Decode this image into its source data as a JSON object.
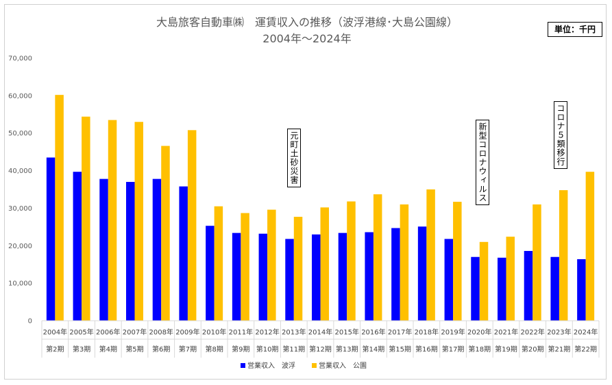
{
  "chart_data": {
    "type": "bar",
    "title": "大島旅客自動車㈱　運賃収入の推移（波浮港線･大島公園線）",
    "subtitle": "2004年～2024年",
    "unit_label": "単位：千円",
    "ylim": [
      0,
      70000
    ],
    "yticks": [
      "0",
      "10,000",
      "20,000",
      "30,000",
      "40,000",
      "50,000",
      "60,000",
      "70,000"
    ],
    "categories": [
      "2004年",
      "2005年",
      "2006年",
      "2007年",
      "2008年",
      "2009年",
      "2010年",
      "2011年",
      "2012年",
      "2013年",
      "2014年",
      "2015年",
      "2016年",
      "2017年",
      "2018年",
      "2019年",
      "2020年",
      "2021年",
      "2022年",
      "2023年",
      "2024年"
    ],
    "periods": [
      "第2期",
      "第3期",
      "第4期",
      "第5期",
      "第6期",
      "第7期",
      "第8期",
      "第9期",
      "第10期",
      "第11期",
      "第12期",
      "第13期",
      "第14期",
      "第15期",
      "第16期",
      "第17期",
      "第18期",
      "第19期",
      "第20期",
      "第21期",
      "第22期"
    ],
    "series": [
      {
        "name": "営業収入　波浮",
        "color": "#0000ff",
        "values": [
          43500,
          39700,
          37800,
          37000,
          37800,
          35800,
          25300,
          23400,
          23200,
          21800,
          23000,
          23400,
          23600,
          24700,
          25100,
          21800,
          17000,
          16800,
          18600,
          17000,
          16400
        ]
      },
      {
        "name": "営業収入　公園",
        "color": "#ffc000",
        "values": [
          60200,
          54400,
          53500,
          53000,
          46600,
          50800,
          30500,
          28700,
          29600,
          27700,
          30200,
          31800,
          33700,
          31000,
          35000,
          31700,
          21000,
          22400,
          31000,
          34800,
          39700
        ]
      }
    ],
    "annotations": [
      {
        "text": "元町土砂災害",
        "category": "2013年"
      },
      {
        "text": "新型コロナウィルス",
        "category": "2020年"
      },
      {
        "text": "コロナ５類移行",
        "category": "2023年"
      }
    ],
    "grid": false,
    "legend": "bottom-center"
  }
}
